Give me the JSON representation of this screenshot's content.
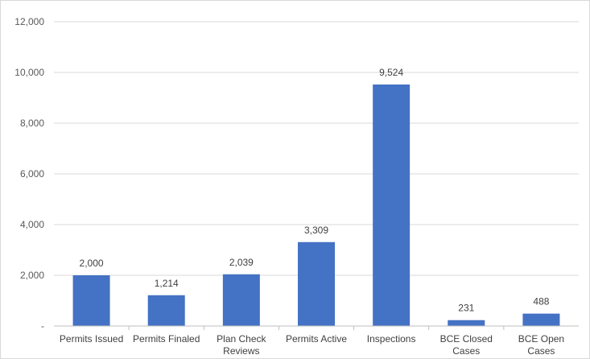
{
  "chart_data": {
    "type": "bar",
    "categories": [
      "Permits Issued",
      "Permits Finaled",
      "Plan Check Reviews",
      "Permits Active",
      "Inspections",
      "BCE Closed Cases",
      "BCE Open Cases"
    ],
    "values": [
      2000,
      1214,
      2039,
      3309,
      9524,
      231,
      488
    ],
    "data_labels": [
      "2,000",
      "1,214",
      "2,039",
      "3,309",
      "9,524",
      "231",
      "488"
    ],
    "ylim": [
      0,
      12000
    ],
    "yticks": [
      0,
      2000,
      4000,
      6000,
      8000,
      10000,
      12000
    ],
    "ytick_labels": [
      "-",
      "2,000",
      "4,000",
      "6,000",
      "8,000",
      "10,000",
      "12,000"
    ],
    "grid": true,
    "bar_color": "#4472C4",
    "grid_color": "#d9d9d9",
    "title": "",
    "xlabel": "",
    "ylabel": ""
  }
}
